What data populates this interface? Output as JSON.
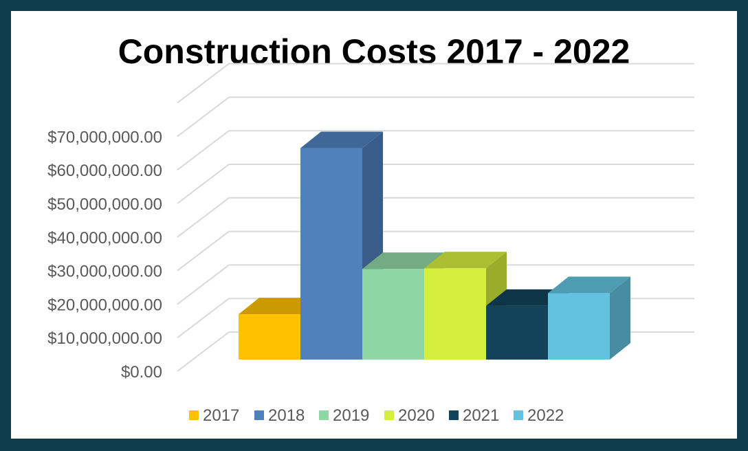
{
  "chart_data": {
    "type": "bar",
    "title": "Construction Costs 2017 - 2022",
    "categories": [
      "2017",
      "2018",
      "2019",
      "2020",
      "2021",
      "2022"
    ],
    "values": [
      13500000,
      63000000,
      27000000,
      27200000,
      16000000,
      19800000
    ],
    "colors": [
      "#ffc000",
      "#4f81bd",
      "#8fd6a5",
      "#d4ef3d",
      "#12435a",
      "#62c2df"
    ],
    "ylim": [
      0,
      80000000
    ],
    "y_tick_labels": [
      "$0.00",
      "$10,000,000.00",
      "$20,000,000.00",
      "$30,000,000.00",
      "$40,000,000.00",
      "$50,000,000.00",
      "$60,000,000.00",
      "$70,000,000.00"
    ],
    "legend": [
      "2017",
      "2018",
      "2019",
      "2020",
      "2021",
      "2022"
    ],
    "legend_position": "bottom",
    "grid": true,
    "style": "3d-column"
  }
}
